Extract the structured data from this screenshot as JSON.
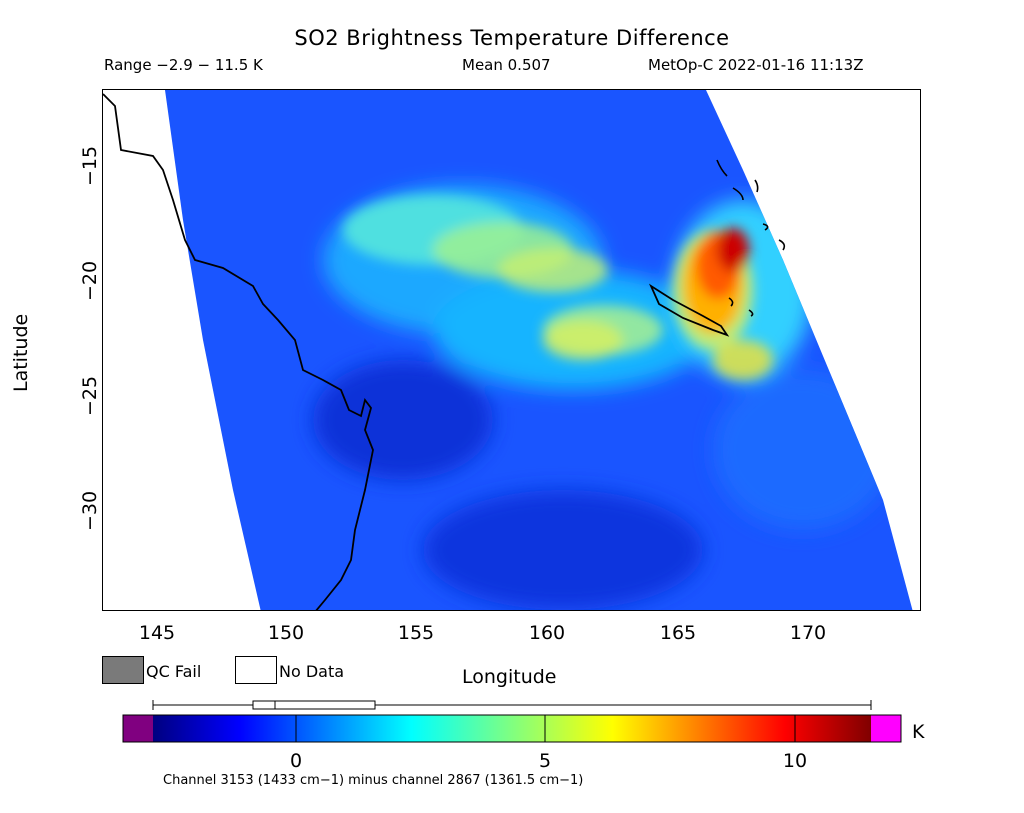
{
  "header": {
    "title": "SO2 Brightness Temperature Difference",
    "range": "Range −2.9 − 11.5 K",
    "mean": "Mean 0.507",
    "satellite": "MetOp-C 2022-01-16 11:13Z"
  },
  "axes": {
    "x_label": "Longitude",
    "y_label": "Latitude",
    "x_ticks": [
      "145",
      "150",
      "155",
      "160",
      "165",
      "170"
    ],
    "y_ticks": [
      "−15",
      "−20",
      "−25",
      "−30"
    ],
    "lon_range": [
      143,
      174.5
    ],
    "lat_range": [
      -34.5,
      -11.7
    ]
  },
  "legend": {
    "qc_fail": "QC Fail",
    "no_data": "No Data",
    "qc_fail_color": "#7a7a7a",
    "no_data_color": "#ffffff"
  },
  "colorbar": {
    "ticks": [
      "0",
      "5",
      "10"
    ],
    "tick_values": [
      0,
      5,
      10
    ],
    "unit": "K",
    "min": -2.9,
    "max": 11.5,
    "under_color": "#800080",
    "over_color": "#ff00ff",
    "box_whisker": {
      "min": -2.9,
      "q1": -1.7,
      "median": -0.9,
      "q3": 1.6,
      "max": 11.5
    }
  },
  "footnote": "Channel 3153 (1433 cm−1) minus channel 2867 (1361.5 cm−1)"
}
